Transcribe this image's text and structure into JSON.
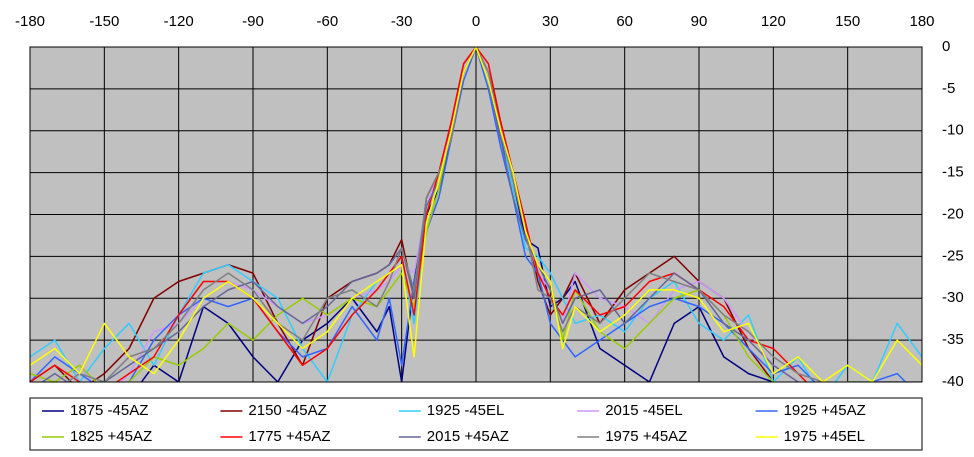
{
  "chart_data": {
    "type": "line",
    "x": [
      -180,
      -170,
      -160,
      -150,
      -140,
      -130,
      -120,
      -110,
      -100,
      -90,
      -80,
      -70,
      -60,
      -50,
      -40,
      -35,
      -30,
      -25,
      -20,
      -15,
      -10,
      -5,
      0,
      5,
      10,
      15,
      20,
      25,
      30,
      35,
      40,
      50,
      60,
      70,
      80,
      90,
      100,
      110,
      120,
      130,
      140,
      150,
      160,
      170,
      180
    ],
    "xlim": [
      -180,
      180
    ],
    "xticks": [
      -180,
      -150,
      -120,
      -90,
      -60,
      -30,
      0,
      30,
      60,
      90,
      120,
      150,
      180
    ],
    "ylim": [
      -40,
      0
    ],
    "yticks": [
      0,
      -5,
      -10,
      -15,
      -20,
      -25,
      -30,
      -35,
      -40
    ],
    "grid": true,
    "legend": "bottom",
    "series": [
      {
        "name": "1875 -45AZ",
        "color": "#000080",
        "values": [
          -40,
          -41,
          -42,
          -45,
          -42,
          -38,
          -40,
          -31,
          -33,
          -37,
          -40,
          -35,
          -33,
          -30,
          -34,
          -31,
          -40,
          -28,
          -20,
          -17,
          -11,
          -3,
          0,
          -4,
          -11,
          -16,
          -23,
          -24,
          -31,
          -30,
          -28,
          -36,
          -38,
          -40,
          -33,
          -31,
          -37,
          -39,
          -40,
          -42,
          -41,
          -43,
          -40,
          -41,
          -40
        ]
      },
      {
        "name": "2150 -45AZ",
        "color": "#800000",
        "values": [
          -40,
          -38,
          -41,
          -39,
          -36,
          -30,
          -28,
          -27,
          -26,
          -27,
          -33,
          -38,
          -30,
          -28,
          -27,
          -26,
          -23,
          -30,
          -18,
          -15,
          -9,
          -2,
          0,
          -3,
          -9,
          -15,
          -21,
          -28,
          -32,
          -30,
          -27,
          -33,
          -29,
          -27,
          -25,
          -28,
          -30,
          -36,
          -40,
          -42,
          -44,
          -43,
          -41,
          -40,
          -41
        ]
      },
      {
        "name": "1925 -45EL",
        "color": "#33ccff",
        "values": [
          -37,
          -35,
          -40,
          -36,
          -33,
          -38,
          -32,
          -27,
          -26,
          -28,
          -30,
          -36,
          -40,
          -32,
          -28,
          -27,
          -25,
          -33,
          -21,
          -16,
          -10,
          -3,
          0,
          -4,
          -10,
          -17,
          -24,
          -25,
          -27,
          -30,
          -33,
          -32,
          -34,
          -30,
          -28,
          -33,
          -35,
          -32,
          -40,
          -37,
          -42,
          -38,
          -40,
          -33,
          -37
        ]
      },
      {
        "name": "2015 -45EL",
        "color": "#cc99ff",
        "values": [
          -41,
          -40,
          -38,
          -42,
          -39,
          -34,
          -33,
          -30,
          -28,
          -29,
          -31,
          -33,
          -32,
          -30,
          -29,
          -28,
          -26,
          -27,
          -19,
          -15,
          -10,
          -2,
          0,
          -3,
          -10,
          -16,
          -22,
          -27,
          -29,
          -33,
          -27,
          -30,
          -31,
          -33,
          -29,
          -28,
          -30,
          -34,
          -38,
          -40,
          -41,
          -40,
          -43,
          -40,
          -40
        ]
      },
      {
        "name": "1925 +45AZ",
        "color": "#3366ff",
        "values": [
          -40,
          -37,
          -39,
          -41,
          -40,
          -35,
          -32,
          -30,
          -31,
          -30,
          -34,
          -37,
          -36,
          -31,
          -35,
          -30,
          -38,
          -28,
          -22,
          -18,
          -11,
          -4,
          0,
          -5,
          -12,
          -18,
          -25,
          -27,
          -33,
          -35,
          -37,
          -35,
          -33,
          -31,
          -30,
          -31,
          -33,
          -36,
          -39,
          -38,
          -41,
          -40,
          -40,
          -39,
          -42
        ]
      },
      {
        "name": "1825 +45AZ",
        "color": "#99cc00",
        "values": [
          -39,
          -40,
          -38,
          -41,
          -40,
          -37,
          -38,
          -36,
          -33,
          -35,
          -32,
          -30,
          -32,
          -30,
          -31,
          -29,
          -27,
          -31,
          -22,
          -17,
          -10,
          -3,
          0,
          -4,
          -10,
          -15,
          -22,
          -26,
          -28,
          -35,
          -29,
          -34,
          -36,
          -33,
          -30,
          -29,
          -32,
          -37,
          -40,
          -41,
          -42,
          -40,
          -40,
          -41,
          -40
        ]
      },
      {
        "name": "1775 +45AZ",
        "color": "#ff0000",
        "values": [
          -40,
          -38,
          -40,
          -41,
          -39,
          -37,
          -32,
          -28,
          -28,
          -30,
          -34,
          -38,
          -36,
          -32,
          -29,
          -27,
          -25,
          -32,
          -20,
          -15,
          -9,
          -2,
          0,
          -2,
          -9,
          -15,
          -21,
          -27,
          -30,
          -32,
          -29,
          -32,
          -31,
          -28,
          -27,
          -29,
          -31,
          -35,
          -36,
          -39,
          -42,
          -41,
          -40,
          -42,
          -40
        ]
      },
      {
        "name": "2015 +45AZ",
        "color": "#666699",
        "values": [
          -41,
          -39,
          -41,
          -40,
          -38,
          -36,
          -34,
          -31,
          -29,
          -28,
          -31,
          -33,
          -31,
          -28,
          -27,
          -26,
          -24,
          -30,
          -19,
          -16,
          -10,
          -3,
          0,
          -4,
          -11,
          -18,
          -23,
          -26,
          -29,
          -33,
          -30,
          -29,
          -33,
          -30,
          -27,
          -29,
          -33,
          -35,
          -38,
          -40,
          -41,
          -42,
          -40,
          -40,
          -41
        ]
      },
      {
        "name": "1975 +45AZ",
        "color": "#808080",
        "values": [
          -40,
          -41,
          -39,
          -40,
          -37,
          -36,
          -33,
          -29,
          -27,
          -29,
          -33,
          -35,
          -30,
          -29,
          -31,
          -28,
          -24,
          -29,
          -18,
          -15,
          -11,
          -3,
          0,
          -3,
          -10,
          -16,
          -22,
          -29,
          -30,
          -34,
          -31,
          -33,
          -30,
          -27,
          -28,
          -29,
          -32,
          -34,
          -37,
          -39,
          -40,
          -43,
          -41,
          -40,
          -40
        ]
      },
      {
        "name": "1975 +45EL",
        "color": "#ffff00",
        "values": [
          -38,
          -36,
          -39,
          -33,
          -37,
          -39,
          -35,
          -30,
          -28,
          -30,
          -33,
          -36,
          -34,
          -30,
          -28,
          -27,
          -26,
          -37,
          -21,
          -16,
          -10,
          -3,
          0,
          -4,
          -10,
          -15,
          -22,
          -26,
          -28,
          -36,
          -31,
          -34,
          -32,
          -29,
          -29,
          -30,
          -34,
          -33,
          -39,
          -37,
          -40,
          -38,
          -40,
          -35,
          -38
        ]
      }
    ]
  }
}
